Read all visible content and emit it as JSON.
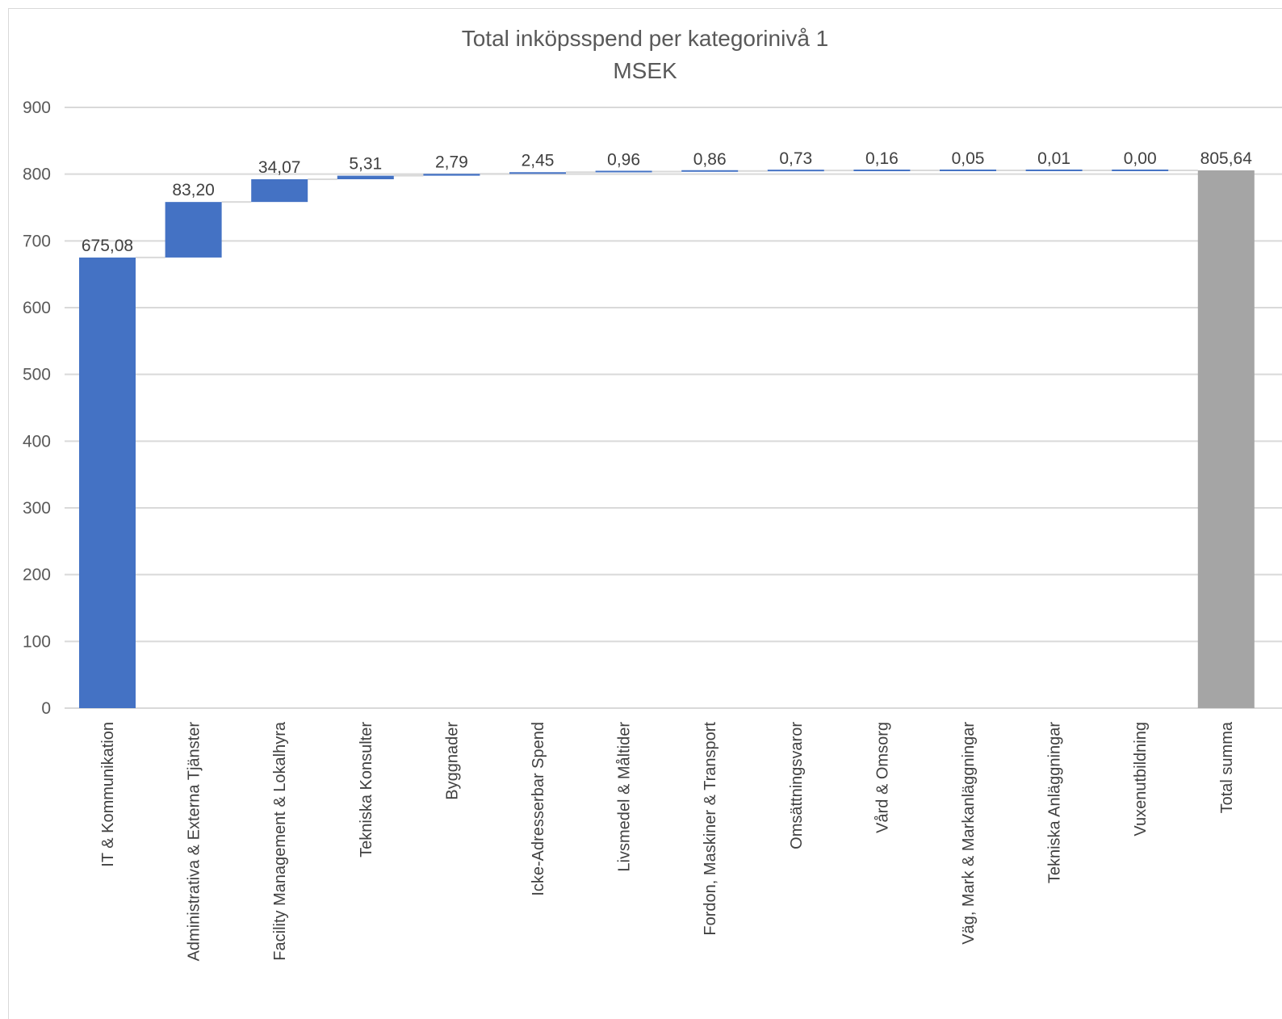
{
  "chart_data": {
    "type": "bar",
    "subtype": "waterfall",
    "title": "Total inköpsspend per kategorinivå 1",
    "subtitle": "MSEK",
    "xlabel": "",
    "ylabel": "",
    "ylim": [
      0,
      900
    ],
    "yticks": [
      0,
      100,
      200,
      300,
      400,
      500,
      600,
      700,
      800,
      900
    ],
    "grid": true,
    "legend": "none",
    "categories": [
      "IT & Kommunikation",
      "Administrativa & Externa Tjänster",
      "Facility Management & Lokalhyra",
      "Tekniska Konsulter",
      "Byggnader",
      "Icke-Adresserbar Spend",
      "Livsmedel & Måltider",
      "Fordon, Maskiner & Transport",
      "Omsättningsvaror",
      "Vård & Omsorg",
      "Väg, Mark & Markanläggningar",
      "Tekniska Anläggningar",
      "Vuxenutbildning",
      "Total summa"
    ],
    "values": [
      675.08,
      83.2,
      34.07,
      5.31,
      2.79,
      2.45,
      0.96,
      0.86,
      0.73,
      0.16,
      0.05,
      0.01,
      0.0,
      805.64
    ],
    "labels": [
      "675,08",
      "83,20",
      "34,07",
      "5,31",
      "2,79",
      "2,45",
      "0,96",
      "0,86",
      "0,73",
      "0,16",
      "0,05",
      "0,01",
      "0,00",
      "805,64"
    ],
    "is_total": [
      false,
      false,
      false,
      false,
      false,
      false,
      false,
      false,
      false,
      false,
      false,
      false,
      false,
      true
    ],
    "colors": {
      "increase": "#4472c4",
      "total": "#a5a5a5",
      "grid": "#d9d9d9",
      "connector": "#d9d9d9",
      "axis_text": "#595959"
    }
  }
}
